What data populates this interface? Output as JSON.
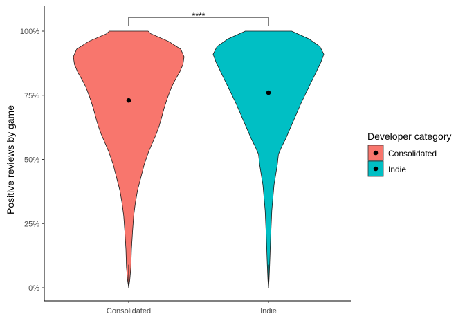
{
  "chart_data": {
    "type": "violin",
    "title": "",
    "xlabel": "",
    "ylabel": "Positive reviews by game",
    "ylim": [
      0,
      1.05
    ],
    "y_ticks": [
      0,
      0.25,
      0.5,
      0.75,
      1.0
    ],
    "y_tick_labels": [
      "0%",
      "25%",
      "50%",
      "75%",
      "100%"
    ],
    "categories": [
      "Consolidated",
      "Indie"
    ],
    "series": [
      {
        "name": "Consolidated",
        "color": "#F8766D",
        "mean": 0.73,
        "density_profile": [
          [
            0.0,
            0.0
          ],
          [
            0.03,
            0.02
          ],
          [
            0.08,
            0.04
          ],
          [
            0.15,
            0.05
          ],
          [
            0.22,
            0.07
          ],
          [
            0.28,
            0.09
          ],
          [
            0.33,
            0.12
          ],
          [
            0.38,
            0.16
          ],
          [
            0.43,
            0.22
          ],
          [
            0.48,
            0.28
          ],
          [
            0.53,
            0.36
          ],
          [
            0.57,
            0.44
          ],
          [
            0.6,
            0.5
          ],
          [
            0.63,
            0.55
          ],
          [
            0.66,
            0.59
          ],
          [
            0.7,
            0.64
          ],
          [
            0.74,
            0.7
          ],
          [
            0.78,
            0.77
          ],
          [
            0.81,
            0.84
          ],
          [
            0.84,
            0.92
          ],
          [
            0.87,
            0.98
          ],
          [
            0.9,
            1.0
          ],
          [
            0.93,
            0.94
          ],
          [
            0.96,
            0.72
          ],
          [
            0.99,
            0.4
          ],
          [
            1.0,
            0.35
          ]
        ]
      },
      {
        "name": "Indie",
        "color": "#00BFC4",
        "mean": 0.76,
        "density_profile": [
          [
            0.0,
            0.0
          ],
          [
            0.03,
            0.01
          ],
          [
            0.08,
            0.02
          ],
          [
            0.14,
            0.03
          ],
          [
            0.2,
            0.04
          ],
          [
            0.25,
            0.05
          ],
          [
            0.3,
            0.06
          ],
          [
            0.35,
            0.08
          ],
          [
            0.4,
            0.1
          ],
          [
            0.44,
            0.13
          ],
          [
            0.48,
            0.16
          ],
          [
            0.52,
            0.18
          ],
          [
            0.55,
            0.24
          ],
          [
            0.58,
            0.31
          ],
          [
            0.61,
            0.37
          ],
          [
            0.64,
            0.43
          ],
          [
            0.68,
            0.51
          ],
          [
            0.72,
            0.59
          ],
          [
            0.76,
            0.68
          ],
          [
            0.8,
            0.77
          ],
          [
            0.84,
            0.86
          ],
          [
            0.88,
            0.95
          ],
          [
            0.91,
            1.0
          ],
          [
            0.94,
            0.93
          ],
          [
            0.97,
            0.73
          ],
          [
            1.0,
            0.42
          ]
        ]
      }
    ],
    "significance": {
      "label": "****",
      "between": [
        "Consolidated",
        "Indie"
      ]
    },
    "legend": {
      "title": "Developer category",
      "position": "right",
      "items": [
        "Consolidated",
        "Indie"
      ]
    },
    "grid": false
  }
}
